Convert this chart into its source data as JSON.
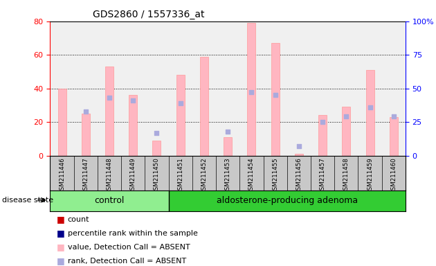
{
  "title": "GDS2860 / 1557336_at",
  "samples": [
    "GSM211446",
    "GSM211447",
    "GSM211448",
    "GSM211449",
    "GSM211450",
    "GSM211451",
    "GSM211452",
    "GSM211453",
    "GSM211454",
    "GSM211455",
    "GSM211456",
    "GSM211457",
    "GSM211458",
    "GSM211459",
    "GSM211460"
  ],
  "n_control": 5,
  "n_adenoma": 10,
  "pink_bar_values": [
    40,
    25,
    53,
    36,
    9,
    48,
    59,
    11,
    79,
    67,
    1,
    24,
    29,
    51,
    23
  ],
  "blue_square_values": [
    null,
    33,
    43,
    41,
    17,
    39,
    null,
    18,
    47,
    45,
    7,
    25,
    29,
    36,
    29
  ],
  "ylim_left": [
    0,
    80
  ],
  "ylim_right": [
    0,
    100
  ],
  "yticks_left": [
    0,
    20,
    40,
    60,
    80
  ],
  "yticks_right": [
    0,
    25,
    50,
    75,
    100
  ],
  "ytick_labels_right": [
    "0",
    "25",
    "50",
    "75",
    "100%"
  ],
  "pink_bar_color": "#FFB6C1",
  "pink_line_color": "#FF9999",
  "blue_sq_color": "#AAAADD",
  "plot_bg": "#F0F0F0",
  "legend_items": [
    {
      "label": "count",
      "color": "#CC0000"
    },
    {
      "label": "percentile rank within the sample",
      "color": "#00008B"
    },
    {
      "label": "value, Detection Call = ABSENT",
      "color": "#FFB6C1"
    },
    {
      "label": "rank, Detection Call = ABSENT",
      "color": "#AAAADD"
    }
  ]
}
